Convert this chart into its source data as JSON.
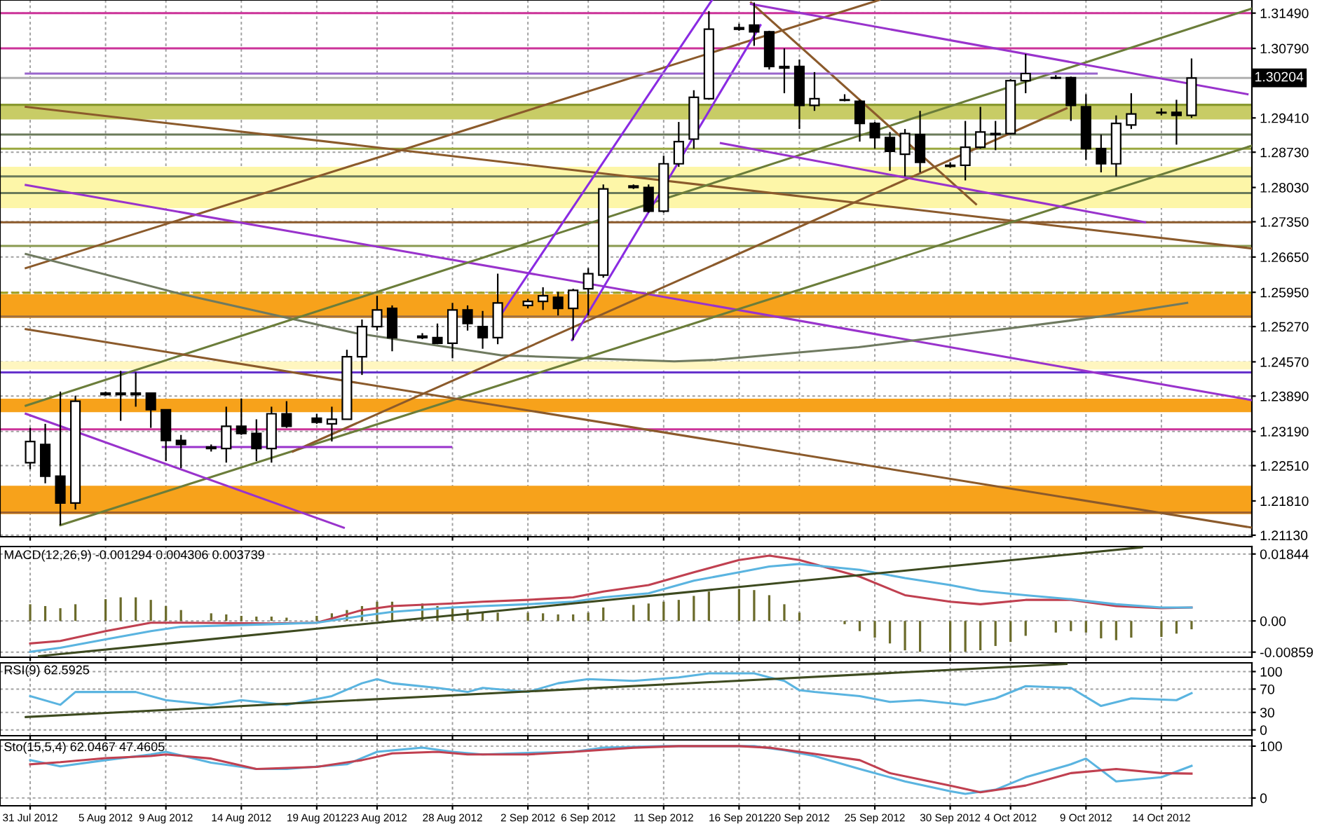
{
  "chart_data": [
    {
      "type": "candlestick",
      "x": [
        "2012-07-31",
        "2012-08-01",
        "2012-08-02",
        "2012-08-03",
        "2012-08-05",
        "2012-08-06",
        "2012-08-07",
        "2012-08-08",
        "2012-08-09",
        "2012-08-10",
        "2012-08-12",
        "2012-08-13",
        "2012-08-14",
        "2012-08-15",
        "2012-08-16",
        "2012-08-17",
        "2012-08-19",
        "2012-08-20",
        "2012-08-21",
        "2012-08-22",
        "2012-08-23",
        "2012-08-24",
        "2012-08-26",
        "2012-08-27",
        "2012-08-28",
        "2012-08-29",
        "2012-08-30",
        "2012-08-31",
        "2012-09-02",
        "2012-09-03",
        "2012-09-04",
        "2012-09-05",
        "2012-09-06",
        "2012-09-07",
        "2012-09-09",
        "2012-09-10",
        "2012-09-11",
        "2012-09-12",
        "2012-09-13",
        "2012-09-14",
        "2012-09-16",
        "2012-09-17",
        "2012-09-18",
        "2012-09-19",
        "2012-09-20",
        "2012-09-21",
        "2012-09-23",
        "2012-09-24",
        "2012-09-25",
        "2012-09-26",
        "2012-09-27",
        "2012-09-28",
        "2012-09-30",
        "2012-10-01",
        "2012-10-02",
        "2012-10-03",
        "2012-10-04",
        "2012-10-05",
        "2012-10-07",
        "2012-10-08",
        "2012-10-09",
        "2012-10-10",
        "2012-10-11",
        "2012-10-12",
        "2012-10-14",
        "2012-10-15",
        "2012-10-16"
      ],
      "ohlc": [
        [
          1.2257,
          1.2326,
          1.2244,
          1.2299
        ],
        [
          1.2293,
          1.2334,
          1.2216,
          1.223
        ],
        [
          1.223,
          1.2398,
          1.2133,
          1.2177
        ],
        [
          1.2177,
          1.239,
          1.2164,
          1.2379
        ],
        [
          1.2395,
          1.2398,
          1.239,
          1.2392
        ],
        [
          1.2395,
          1.2439,
          1.234,
          1.2392
        ],
        [
          1.2395,
          1.2436,
          1.2368,
          1.2392
        ],
        [
          1.2395,
          1.2395,
          1.2326,
          1.2362
        ],
        [
          1.2362,
          1.2362,
          1.226,
          1.2301
        ],
        [
          1.2301,
          1.2312,
          1.2246,
          1.2293
        ],
        [
          1.2288,
          1.2293,
          1.2279,
          1.2285
        ],
        [
          1.2285,
          1.2368,
          1.2257,
          1.2329
        ],
        [
          1.2329,
          1.2384,
          1.2312,
          1.2315
        ],
        [
          1.2315,
          1.2343,
          1.226,
          1.2285
        ],
        [
          1.2285,
          1.2368,
          1.2257,
          1.2354
        ],
        [
          1.2354,
          1.2379,
          1.2326,
          1.2329
        ],
        [
          1.2345,
          1.2354,
          1.2334,
          1.2337
        ],
        [
          1.2334,
          1.2368,
          1.2299,
          1.2343
        ],
        [
          1.2343,
          1.2481,
          1.2343,
          1.2467
        ],
        [
          1.2467,
          1.2541,
          1.2431,
          1.2527
        ],
        [
          1.2527,
          1.2588,
          1.2519,
          1.256
        ],
        [
          1.2563,
          1.2569,
          1.2478,
          1.2505
        ],
        [
          1.2508,
          1.2514,
          1.2502,
          1.2505
        ],
        [
          1.2505,
          1.2533,
          1.2492,
          1.2494
        ],
        [
          1.2494,
          1.2574,
          1.2464,
          1.256
        ],
        [
          1.256,
          1.2569,
          1.2519,
          1.2533
        ],
        [
          1.2527,
          1.2558,
          1.2483,
          1.2505
        ],
        [
          1.2505,
          1.2632,
          1.2492,
          1.2574
        ],
        [
          1.2569,
          1.2582,
          1.2563,
          1.2577
        ],
        [
          1.2577,
          1.2605,
          1.256,
          1.2588
        ],
        [
          1.2585,
          1.2596,
          1.2549,
          1.2563
        ],
        [
          1.2563,
          1.2602,
          1.25,
          1.2599
        ],
        [
          1.2602,
          1.2643,
          1.2549,
          1.2632
        ],
        [
          1.2629,
          1.2809,
          1.2624,
          1.28
        ],
        [
          1.2806,
          1.2809,
          1.28,
          1.2803
        ],
        [
          1.2803,
          1.2809,
          1.2753,
          1.2756
        ],
        [
          1.2756,
          1.2866,
          1.2753,
          1.285
        ],
        [
          1.285,
          1.2933,
          1.2844,
          1.2894
        ],
        [
          1.2899,
          1.2996,
          1.288,
          1.2982
        ],
        [
          1.2979,
          1.3153,
          1.2977,
          1.3117
        ],
        [
          1.312,
          1.3128,
          1.3114,
          1.3117
        ],
        [
          1.3125,
          1.317,
          1.3084,
          1.3112
        ],
        [
          1.3112,
          1.3114,
          1.3037,
          1.3043
        ],
        [
          1.3043,
          1.3079,
          1.299,
          1.304
        ],
        [
          1.3043,
          1.3057,
          1.2919,
          1.2966
        ],
        [
          1.2966,
          1.3032,
          1.2955,
          1.2979
        ],
        [
          1.2977,
          1.2988,
          1.2974,
          1.2976
        ],
        [
          1.2974,
          1.2977,
          1.2894,
          1.293
        ],
        [
          1.293,
          1.2933,
          1.288,
          1.2902
        ],
        [
          1.2902,
          1.2913,
          1.2836,
          1.2875
        ],
        [
          1.2869,
          1.2919,
          1.2825,
          1.291
        ],
        [
          1.2908,
          1.2955,
          1.2833,
          1.2853
        ],
        [
          1.2847,
          1.2853,
          1.2842,
          1.2845
        ],
        [
          1.2847,
          1.2935,
          1.2817,
          1.2883
        ],
        [
          1.2883,
          1.2963,
          1.288,
          1.2913
        ],
        [
          1.2908,
          1.2935,
          1.2877,
          1.291
        ],
        [
          1.291,
          1.3018,
          1.2908,
          1.3015
        ],
        [
          1.3015,
          1.3068,
          1.299,
          1.3029
        ],
        [
          1.3021,
          1.3026,
          1.3018,
          1.302
        ],
        [
          1.3021,
          1.3023,
          1.2935,
          1.2966
        ],
        [
          1.2963,
          1.2988,
          1.2858,
          1.288
        ],
        [
          1.288,
          1.2908,
          1.2833,
          1.285
        ],
        [
          1.285,
          1.2946,
          1.2825,
          1.293
        ],
        [
          1.2927,
          1.299,
          1.2919,
          1.2949
        ],
        [
          1.2952,
          1.296,
          1.2946,
          1.2951
        ],
        [
          1.2952,
          1.2977,
          1.2888,
          1.2946
        ],
        [
          1.2946,
          1.3059,
          1.2941,
          1.302
        ]
      ],
      "series": [
        {
          "type": "line",
          "color": "#8b5a2b",
          "x": [
            "2012-07-30T17:00",
            "2012-09-25T07:00"
          ],
          "values": [
            1.2643,
            1.3175
          ]
        },
        {
          "type": "line",
          "color": "#8b5a2b",
          "x": [
            "2012-07-30T17:00",
            "2012-10-20"
          ],
          "values": [
            1.2963,
            1.2682
          ]
        },
        {
          "type": "line",
          "color": "#9933cc",
          "x": [
            "2012-07-30T17:00",
            "2012-10-20"
          ],
          "values": [
            1.2808,
            1.2381
          ]
        },
        {
          "type": "line",
          "color": "#6f7a60",
          "x": [
            "2012-07-30T17:00",
            "2012-08-10T02:00",
            "2012-08-21T14:00",
            "2012-08-31T05:00",
            "2012-09-11T17:00",
            "2012-09-14T10:00",
            "2012-09-23T22:00",
            "2012-10-02T19:00",
            "2012-10-09T07:00",
            "2012-10-15T17:00"
          ],
          "values": [
            1.2671,
            1.2591,
            1.2514,
            1.247,
            1.2458,
            1.2461,
            1.2486,
            1.2519,
            1.2544,
            1.2574
          ]
        },
        {
          "type": "line",
          "color": "#6b7d3a",
          "x": [
            "2012-08-02",
            "2012-10-20"
          ],
          "values": [
            1.2133,
            1.2886
          ]
        },
        {
          "type": "line",
          "color": "#6b7d3a",
          "x": [
            "2012-07-30T17:00",
            "2012-10-20"
          ],
          "values": [
            1.237,
            1.3158
          ]
        },
        {
          "type": "line",
          "color": "#8b5a2b",
          "x": [
            "2012-08-17T10:00",
            "2012-10-07T17:00"
          ],
          "values": [
            1.2279,
            1.296
          ]
        },
        {
          "type": "line",
          "color": "#8a2be2",
          "x": [
            "2012-08-31",
            "2012-09-14T05:00"
          ],
          "values": [
            1.2541,
            1.3175
          ]
        },
        {
          "type": "line",
          "color": "#8a2be2",
          "x": [
            "2012-09-04T22:00",
            "2012-09-17T10:00"
          ],
          "values": [
            1.25,
            1.3125
          ]
        },
        {
          "type": "line",
          "color": "#8b5a2b",
          "x": [
            "2012-09-16T19:00",
            "2012-10-01T17:00"
          ],
          "values": [
            1.317,
            1.277
          ]
        },
        {
          "type": "line",
          "color": "#9933cc",
          "x": [
            "2012-09-16T19:00",
            "2012-10-19T17:00"
          ],
          "values": [
            1.3167,
            1.2988
          ]
        },
        {
          "type": "line",
          "color": "#9933cc",
          "x": [
            "2012-09-14T19:00",
            "2012-10-12T22:00"
          ],
          "values": [
            1.2891,
            1.2734
          ]
        },
        {
          "type": "line",
          "color": "#8b5a2b",
          "x": [
            "2012-07-30T17:00",
            "2012-10-20"
          ],
          "values": [
            1.2522,
            1.2128
          ]
        },
        {
          "type": "line",
          "color": "#9933cc",
          "x": [
            "2012-07-30T17:00",
            "2012-08-20T19:00"
          ],
          "values": [
            1.2354,
            1.2128
          ]
        },
        {
          "type": "line",
          "color": "#9933cc",
          "x": [
            "2012-08-08T19:00",
            "2012-08-27T22:00"
          ],
          "values": [
            1.2288,
            1.2288
          ]
        },
        {
          "type": "line",
          "color": "#9966cc",
          "x": [
            "2012-07-30T17:00",
            "2012-10-09T17:00"
          ],
          "values": [
            1.3029,
            1.3029
          ]
        }
      ],
      "bands": [
        {
          "axis": "y",
          "from": 1.2938,
          "to": 1.2968,
          "color": "#c8cc66"
        },
        {
          "axis": "y",
          "from": 1.2762,
          "to": 1.2844,
          "color": "#fdf6a8"
        },
        {
          "axis": "y",
          "from": 1.2544,
          "to": 1.2591,
          "color": "#f7a21b"
        },
        {
          "axis": "y",
          "from": 1.2442,
          "to": 1.2458,
          "color": "#fff6c0"
        },
        {
          "axis": "y",
          "from": 1.2357,
          "to": 1.2384,
          "color": "#f7a21b"
        },
        {
          "axis": "y",
          "from": 1.2155,
          "to": 1.2211,
          "color": "#f7a21b"
        }
      ],
      "ref_lines": [
        {
          "axis": "y",
          "value": 1.3149,
          "color": "#cc3399"
        },
        {
          "axis": "y",
          "value": 1.3079,
          "color": "#cc3399"
        },
        {
          "axis": "y",
          "value": 1.30204,
          "label": "1.30204",
          "color": "#b0b0b0"
        },
        {
          "axis": "y",
          "value": 1.2967,
          "color": "#8a9a30"
        },
        {
          "axis": "y",
          "value": 1.2908,
          "color": "#6b7b5b"
        },
        {
          "axis": "y",
          "value": 1.288,
          "color": "#9aa840"
        },
        {
          "axis": "y",
          "value": 1.2825,
          "color": "#6b7b5b"
        },
        {
          "axis": "y",
          "value": 1.2792,
          "color": "#6b7b5b"
        },
        {
          "axis": "y",
          "value": 1.2734,
          "color": "#8b5a2b"
        },
        {
          "axis": "y",
          "value": 1.2687,
          "color": "#8a9a50"
        },
        {
          "axis": "y",
          "value": 1.2594,
          "color": "#a0a020",
          "line_style": "dashed"
        },
        {
          "axis": "y",
          "value": 1.2547,
          "color": "#a07040"
        },
        {
          "axis": "y",
          "value": 1.2436,
          "color": "#6633cc"
        },
        {
          "axis": "y",
          "value": 1.2323,
          "color": "#cc3399"
        },
        {
          "axis": "y",
          "value": 1.2158,
          "color": "#a0622d"
        }
      ],
      "xlim": [
        "2012-07-29",
        "2012-10-20"
      ],
      "ylim": [
        1.211,
        1.3175
      ],
      "yticks": [
        {
          "value": 1.3149,
          "label": "1.31490"
        },
        {
          "value": 1.3079,
          "label": "1.30790"
        },
        {
          "value": 1.2941,
          "label": "1.29410"
        },
        {
          "value": 1.2873,
          "label": "1.28730"
        },
        {
          "value": 1.2803,
          "label": "1.28030"
        },
        {
          "value": 1.2735,
          "label": "1.27350"
        },
        {
          "value": 1.2665,
          "label": "1.26650"
        },
        {
          "value": 1.2595,
          "label": "1.25950"
        },
        {
          "value": 1.2527,
          "label": "1.25270"
        },
        {
          "value": 1.2457,
          "label": "1.24570"
        },
        {
          "value": 1.2389,
          "label": "1.23890"
        },
        {
          "value": 1.2319,
          "label": "1.23190"
        },
        {
          "value": 1.2251,
          "label": "1.22510"
        },
        {
          "value": 1.2181,
          "label": "1.21810"
        },
        {
          "value": 1.2113,
          "label": "1.21130"
        }
      ],
      "xticks": [
        {
          "value": "2012-07-31",
          "label": null
        },
        {
          "value": "2012-08-05",
          "label": null
        },
        {
          "value": "2012-08-09",
          "label": null
        },
        {
          "value": "2012-08-14",
          "label": null
        },
        {
          "value": "2012-08-19",
          "label": null
        },
        {
          "value": "2012-08-23",
          "label": null
        },
        {
          "value": "2012-08-28",
          "label": null
        },
        {
          "value": "2012-09-02",
          "label": null
        },
        {
          "value": "2012-09-06",
          "label": null
        },
        {
          "value": "2012-09-11",
          "label": null
        },
        {
          "value": "2012-09-16",
          "label": null
        },
        {
          "value": "2012-09-20",
          "label": null
        },
        {
          "value": "2012-09-25",
          "label": null
        },
        {
          "value": "2012-09-30",
          "label": null
        },
        {
          "value": "2012-10-04",
          "label": null
        },
        {
          "value": "2012-10-09",
          "label": null
        },
        {
          "value": "2012-10-14",
          "label": null
        }
      ],
      "grid": true,
      "tick_labels": "y"
    },
    {
      "type": "bar",
      "title": "MACD(12,26,9) -0.001294 0.004306 0.003739",
      "series": [
        {
          "type": "bar",
          "color": "#6b6b2b",
          "x": [
            "2012-07-31",
            "2012-08-01",
            "2012-08-02",
            "2012-08-03",
            "2012-08-05",
            "2012-08-06",
            "2012-08-07",
            "2012-08-08",
            "2012-08-09",
            "2012-08-10",
            "2012-08-12",
            "2012-08-13",
            "2012-08-14",
            "2012-08-15",
            "2012-08-16",
            "2012-08-17",
            "2012-08-19",
            "2012-08-20",
            "2012-08-21",
            "2012-08-22",
            "2012-08-23",
            "2012-08-24",
            "2012-08-26",
            "2012-08-27",
            "2012-08-28",
            "2012-08-29",
            "2012-08-30",
            "2012-08-31",
            "2012-09-02",
            "2012-09-03",
            "2012-09-04",
            "2012-09-05",
            "2012-09-06",
            "2012-09-07",
            "2012-09-09",
            "2012-09-10",
            "2012-09-11",
            "2012-09-12",
            "2012-09-13",
            "2012-09-14",
            "2012-09-16",
            "2012-09-17",
            "2012-09-18",
            "2012-09-19",
            "2012-09-20",
            "2012-09-21",
            "2012-09-23",
            "2012-09-24",
            "2012-09-25",
            "2012-09-26",
            "2012-09-27",
            "2012-09-28",
            "2012-09-30",
            "2012-10-01",
            "2012-10-02",
            "2012-10-03",
            "2012-10-04",
            "2012-10-05",
            "2012-10-07",
            "2012-10-08",
            "2012-10-09",
            "2012-10-10",
            "2012-10-11",
            "2012-10-12",
            "2012-10-14",
            "2012-10-15",
            "2012-10-16"
          ],
          "values": [
            0.0046,
            0.0041,
            0.0035,
            0.0046,
            0.006,
            0.0065,
            0.0065,
            0.0058,
            0.0041,
            0.003,
            0.0021,
            0.0018,
            0.0014,
            0.0012,
            0.0012,
            0.0009,
            0.0014,
            0.0021,
            0.003,
            0.0041,
            0.0053,
            0.0053,
            0.0048,
            0.0041,
            0.0039,
            0.0032,
            0.0025,
            0.0023,
            0.0023,
            0.0021,
            0.0018,
            0.0018,
            0.0023,
            0.0037,
            0.0044,
            0.0048,
            0.0053,
            0.0058,
            0.0069,
            0.0081,
            0.0088,
            0.0085,
            0.0071,
            0.0046,
            0.0023,
            0,
            -0.0009,
            -0.0028,
            -0.0046,
            -0.0062,
            -0.0081,
            -0.0085,
            -0.0085,
            -0.0085,
            -0.0081,
            -0.0069,
            -0.0058,
            -0.0041,
            -0.0032,
            -0.0028,
            -0.0032,
            -0.0048,
            -0.0053,
            -0.0046,
            -0.0044,
            -0.0035,
            -0.0023
          ]
        },
        {
          "type": "line",
          "color": "#c04050",
          "x": [
            "2012-07-31",
            "2012-08-02",
            "2012-08-05",
            "2012-08-08",
            "2012-08-10",
            "2012-08-16",
            "2012-08-19",
            "2012-08-22",
            "2012-08-24",
            "2012-08-28",
            "2012-08-30",
            "2012-09-02",
            "2012-09-05",
            "2012-09-07",
            "2012-09-10",
            "2012-09-13",
            "2012-09-16",
            "2012-09-18",
            "2012-09-20",
            "2012-09-24",
            "2012-09-27",
            "2012-09-30",
            "2012-10-02",
            "2012-10-05",
            "2012-10-08",
            "2012-10-11",
            "2012-10-14",
            "2012-10-16"
          ],
          "values": [
            -0.0062,
            -0.0055,
            -0.0028,
            -0.0005,
            -0.0005,
            -0.0007,
            -0.0005,
            0.003,
            0.0041,
            0.0048,
            0.0053,
            0.0058,
            0.0065,
            0.0081,
            0.0099,
            0.0134,
            0.0168,
            0.018,
            0.0168,
            0.0122,
            0.0071,
            0.0053,
            0.0046,
            0.0058,
            0.0058,
            0.0041,
            0.0035,
            0.0037
          ]
        },
        {
          "type": "line",
          "color": "#5ab4e0",
          "x": [
            "2012-07-31",
            "2012-08-02",
            "2012-08-05",
            "2012-08-08",
            "2012-08-10",
            "2012-08-16",
            "2012-08-19",
            "2012-08-22",
            "2012-08-24",
            "2012-08-28",
            "2012-08-30",
            "2012-09-02",
            "2012-09-05",
            "2012-09-07",
            "2012-09-10",
            "2012-09-13",
            "2012-09-16",
            "2012-09-18",
            "2012-09-20",
            "2012-09-24",
            "2012-09-27",
            "2012-09-30",
            "2012-10-02",
            "2012-10-05",
            "2012-10-08",
            "2012-10-11",
            "2012-10-14",
            "2012-10-16"
          ],
          "values": [
            -0.0085,
            -0.0074,
            -0.0051,
            -0.0028,
            -0.0016,
            -0.0009,
            -0.0005,
            0.0014,
            0.0025,
            0.0037,
            0.0041,
            0.0046,
            0.0053,
            0.0065,
            0.0076,
            0.0111,
            0.0134,
            0.015,
            0.0157,
            0.0141,
            0.0118,
            0.0099,
            0.0083,
            0.0071,
            0.006,
            0.0046,
            0.0037,
            0.0037
          ]
        },
        {
          "type": "line",
          "color": "#3d4a1f",
          "x": [
            "2012-07-31T14:00",
            "2012-10-12T17:00"
          ],
          "values": [
            -0.0097,
            0.0203
          ]
        }
      ],
      "xlim": [
        "2012-07-29",
        "2012-10-20"
      ],
      "ylim": [
        -0.01,
        0.0205
      ],
      "yticks": [
        {
          "value": 0.01844,
          "label": "0.01844"
        },
        {
          "value": 0,
          "label": "0.00"
        },
        {
          "value": -0.00859,
          "label": "-0.00859"
        }
      ],
      "xticks": [
        {
          "value": "2012-07-31",
          "label": null
        },
        {
          "value": "2012-08-05",
          "label": null
        },
        {
          "value": "2012-08-09",
          "label": null
        },
        {
          "value": "2012-08-14",
          "label": null
        },
        {
          "value": "2012-08-19",
          "label": null
        },
        {
          "value": "2012-08-23",
          "label": null
        },
        {
          "value": "2012-08-28",
          "label": null
        },
        {
          "value": "2012-09-02",
          "label": null
        },
        {
          "value": "2012-09-06",
          "label": null
        },
        {
          "value": "2012-09-11",
          "label": null
        },
        {
          "value": "2012-09-16",
          "label": null
        },
        {
          "value": "2012-09-20",
          "label": null
        },
        {
          "value": "2012-09-25",
          "label": null
        },
        {
          "value": "2012-09-30",
          "label": null
        },
        {
          "value": "2012-10-04",
          "label": null
        },
        {
          "value": "2012-10-09",
          "label": null
        },
        {
          "value": "2012-10-14",
          "label": null
        }
      ],
      "grid": true,
      "tick_labels": "y"
    },
    {
      "type": "line",
      "title": "RSI(9) 62.5925",
      "series": [
        {
          "type": "line",
          "color": "#5ab4e0",
          "x": [
            "2012-07-31",
            "2012-08-02",
            "2012-08-03",
            "2012-08-07",
            "2012-08-09",
            "2012-08-12",
            "2012-08-14",
            "2012-08-17",
            "2012-08-20",
            "2012-08-22",
            "2012-08-23",
            "2012-08-24",
            "2012-08-27",
            "2012-08-29",
            "2012-08-30",
            "2012-09-02",
            "2012-09-04",
            "2012-09-06",
            "2012-09-09",
            "2012-09-12",
            "2012-09-14",
            "2012-09-17",
            "2012-09-18",
            "2012-09-19",
            "2012-09-20",
            "2012-09-21",
            "2012-09-24",
            "2012-09-26",
            "2012-09-28",
            "2012-10-01",
            "2012-10-03",
            "2012-10-05",
            "2012-10-08",
            "2012-10-10",
            "2012-10-12",
            "2012-10-15",
            "2012-10-16"
          ],
          "values": [
            58,
            43,
            65,
            65,
            51,
            43,
            51,
            43,
            58,
            80,
            87,
            80,
            72,
            65,
            72,
            65,
            80,
            87,
            84,
            90,
            97,
            97,
            90,
            84,
            68,
            65,
            58,
            48,
            51,
            43,
            54,
            75,
            72,
            41,
            54,
            51,
            63
          ]
        },
        {
          "type": "line",
          "color": "#3d4a1f",
          "x": [
            "2012-07-30T17:00",
            "2012-10-07T17:00"
          ],
          "values": [
            22,
            113
          ]
        }
      ],
      "xlim": [
        "2012-07-29",
        "2012-10-20"
      ],
      "ylim": [
        -10,
        115
      ],
      "yticks": [
        0,
        30,
        70,
        100
      ],
      "xticks": [
        {
          "value": "2012-07-31",
          "label": null
        },
        {
          "value": "2012-08-05",
          "label": null
        },
        {
          "value": "2012-08-09",
          "label": null
        },
        {
          "value": "2012-08-14",
          "label": null
        },
        {
          "value": "2012-08-19",
          "label": null
        },
        {
          "value": "2012-08-23",
          "label": null
        },
        {
          "value": "2012-08-28",
          "label": null
        },
        {
          "value": "2012-09-02",
          "label": null
        },
        {
          "value": "2012-09-06",
          "label": null
        },
        {
          "value": "2012-09-11",
          "label": null
        },
        {
          "value": "2012-09-16",
          "label": null
        },
        {
          "value": "2012-09-20",
          "label": null
        },
        {
          "value": "2012-09-25",
          "label": null
        },
        {
          "value": "2012-09-30",
          "label": null
        },
        {
          "value": "2012-10-04",
          "label": null
        },
        {
          "value": "2012-10-09",
          "label": null
        },
        {
          "value": "2012-10-14",
          "label": null
        }
      ],
      "grid": true,
      "tick_labels": "y"
    },
    {
      "type": "line",
      "title": "Sto(15,5,4) 62.0467 47.4605",
      "series": [
        {
          "type": "line",
          "color": "#5ab4e0",
          "x": [
            "2012-07-31",
            "2012-08-02",
            "2012-08-05",
            "2012-08-08",
            "2012-08-09",
            "2012-08-12",
            "2012-08-15",
            "2012-08-17",
            "2012-08-21",
            "2012-08-23",
            "2012-08-26",
            "2012-08-28",
            "2012-08-30",
            "2012-09-02",
            "2012-09-05",
            "2012-09-07",
            "2012-09-11",
            "2012-09-14",
            "2012-09-17",
            "2012-09-19",
            "2012-09-21",
            "2012-09-24",
            "2012-09-27",
            "2012-09-30",
            "2012-10-01",
            "2012-10-03",
            "2012-10-05",
            "2012-10-08",
            "2012-10-09",
            "2012-10-11",
            "2012-10-14",
            "2012-10-16"
          ],
          "values": [
            73,
            61,
            73,
            84,
            89,
            68,
            56,
            56,
            65,
            89,
            97,
            89,
            84,
            87,
            89,
            97,
            100,
            100,
            100,
            92,
            81,
            56,
            32,
            13,
            8,
            16,
            40,
            65,
            76,
            32,
            40,
            62
          ]
        },
        {
          "type": "line",
          "color": "#c04050",
          "x": [
            "2012-07-31",
            "2012-08-02",
            "2012-08-05",
            "2012-08-08",
            "2012-08-09",
            "2012-08-12",
            "2012-08-15",
            "2012-08-19",
            "2012-08-22",
            "2012-08-24",
            "2012-08-27",
            "2012-08-29",
            "2012-09-02",
            "2012-09-05",
            "2012-09-09",
            "2012-09-12",
            "2012-09-16",
            "2012-09-18",
            "2012-09-20",
            "2012-09-24",
            "2012-09-26",
            "2012-09-30",
            "2012-10-02",
            "2012-10-05",
            "2012-10-08",
            "2012-10-11",
            "2012-10-14",
            "2012-10-16"
          ],
          "values": [
            65,
            69,
            77,
            81,
            84,
            76,
            56,
            60,
            73,
            86,
            89,
            84,
            84,
            89,
            97,
            100,
            100,
            97,
            89,
            73,
            48,
            24,
            11,
            24,
            48,
            56,
            48,
            47
          ]
        }
      ],
      "xlim": [
        "2012-07-29",
        "2012-10-20"
      ],
      "ylim": [
        -15,
        112
      ],
      "yticks": [
        0,
        100
      ],
      "xticks": [
        {
          "value": "2012-07-31",
          "label": "31 Jul 2012"
        },
        {
          "value": "2012-08-05",
          "label": "5 Aug 2012"
        },
        {
          "value": "2012-08-09",
          "label": "9 Aug 2012"
        },
        {
          "value": "2012-08-14",
          "label": "14 Aug 2012"
        },
        {
          "value": "2012-08-19",
          "label": "19 Aug 2012"
        },
        {
          "value": "2012-08-23",
          "label": "23 Aug 2012"
        },
        {
          "value": "2012-08-28",
          "label": "28 Aug 2012"
        },
        {
          "value": "2012-09-02",
          "label": "2 Sep 2012"
        },
        {
          "value": "2012-09-06",
          "label": "6 Sep 2012"
        },
        {
          "value": "2012-09-11",
          "label": "11 Sep 2012"
        },
        {
          "value": "2012-09-16",
          "label": "16 Sep 2012"
        },
        {
          "value": "2012-09-20",
          "label": "20 Sep 2012"
        },
        {
          "value": "2012-09-25",
          "label": "25 Sep 2012"
        },
        {
          "value": "2012-09-30",
          "label": "30 Sep 2012"
        },
        {
          "value": "2012-10-04",
          "label": "4 Oct 2012"
        },
        {
          "value": "2012-10-09",
          "label": "9 Oct 2012"
        },
        {
          "value": "2012-10-14",
          "label": "14 Oct 2012"
        }
      ],
      "grid": true
    }
  ]
}
